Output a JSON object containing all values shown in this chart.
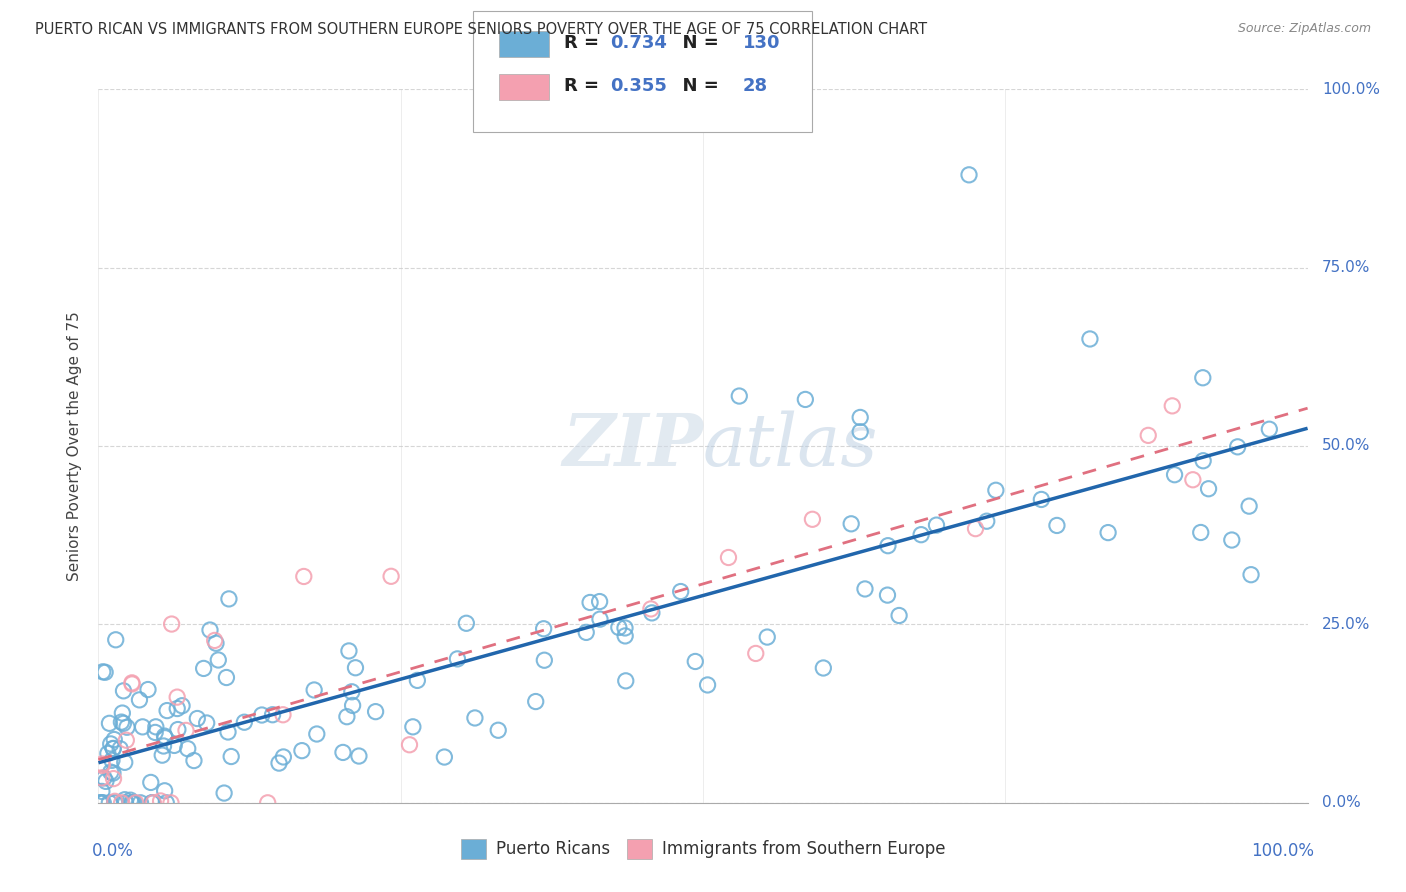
{
  "title": "PUERTO RICAN VS IMMIGRANTS FROM SOUTHERN EUROPE SENIORS POVERTY OVER THE AGE OF 75 CORRELATION CHART",
  "source": "Source: ZipAtlas.com",
  "ylabel": "Seniors Poverty Over the Age of 75",
  "legend_blue_r": "0.734",
  "legend_blue_n": "130",
  "legend_pink_r": "0.355",
  "legend_pink_n": "28",
  "blue_dot_color": "#6baed6",
  "pink_dot_color": "#f4a0b0",
  "blue_line_color": "#2166ac",
  "pink_line_color": "#e07080",
  "title_color": "#333333",
  "source_color": "#888888",
  "tick_color": "#4472c4",
  "label_black": "#222222",
  "background_color": "#ffffff",
  "watermark_color": "#d0dce8",
  "grid_color": "#cccccc",
  "figsize": [
    14.06,
    8.92
  ],
  "dpi": 100
}
